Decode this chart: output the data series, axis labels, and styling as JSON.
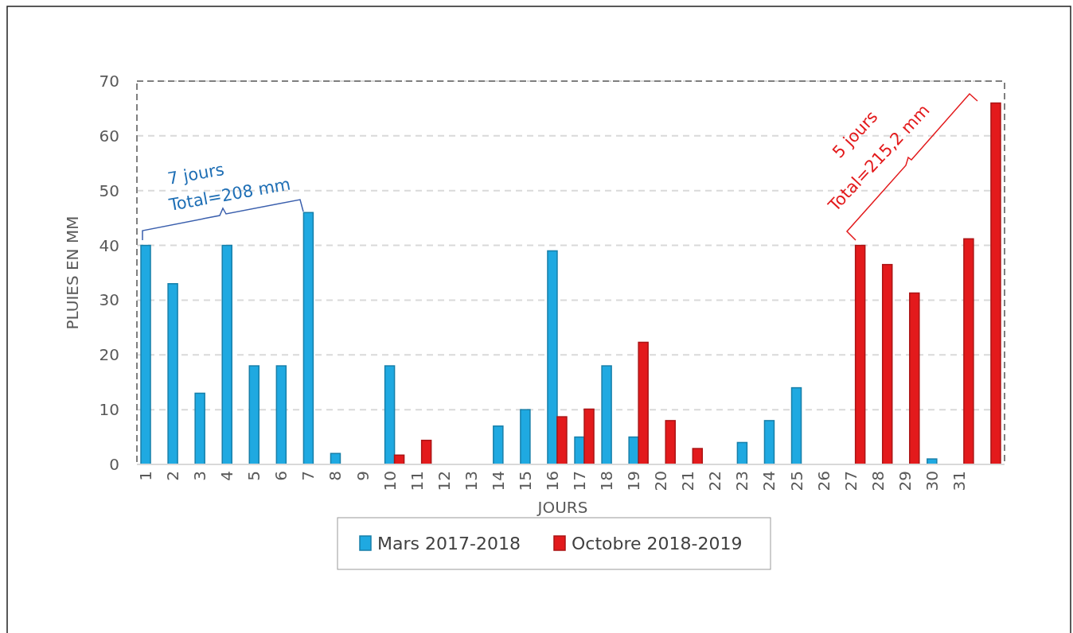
{
  "chart_data": {
    "type": "bar",
    "xlabel": "JOURS",
    "ylabel": "PLUIES EN MM",
    "categories": [
      "1",
      "2",
      "3",
      "4",
      "5",
      "6",
      "7",
      "8",
      "9",
      "10",
      "11",
      "12",
      "13",
      "14",
      "15",
      "16",
      "17",
      "18",
      "19",
      "20",
      "21",
      "22",
      "23",
      "24",
      "25",
      "26",
      "27",
      "28",
      "29",
      "30",
      "31",
      null
    ],
    "series": [
      {
        "name": "Mars 2017-2018",
        "color": "#1fa9e1",
        "values": [
          40,
          33,
          13,
          40,
          18,
          18,
          46,
          2,
          0,
          18,
          0,
          0,
          0,
          7,
          10,
          39,
          5,
          18,
          5,
          0,
          0,
          0,
          4,
          8,
          14,
          0,
          0,
          0,
          0,
          1,
          0,
          0
        ]
      },
      {
        "name": "Octobre 2018-2019",
        "color": "#e31a1c",
        "values": [
          0,
          0,
          0,
          0,
          0,
          0,
          0,
          0,
          0,
          1.7,
          4.4,
          0,
          0,
          0,
          0,
          8.7,
          10.1,
          0,
          22.3,
          8,
          2.9,
          0,
          0,
          0,
          0,
          0,
          40,
          36.5,
          31.3,
          0,
          41.2,
          66
        ]
      }
    ],
    "ylim": [
      0,
      70
    ],
    "yticks": [
      0,
      10,
      20,
      30,
      40,
      50,
      60,
      70
    ],
    "grid": "y",
    "legend": "bottom",
    "annotations": [
      "7 jours",
      "Total=208 mm",
      "5 jours",
      "Total=215,2 mm"
    ]
  }
}
